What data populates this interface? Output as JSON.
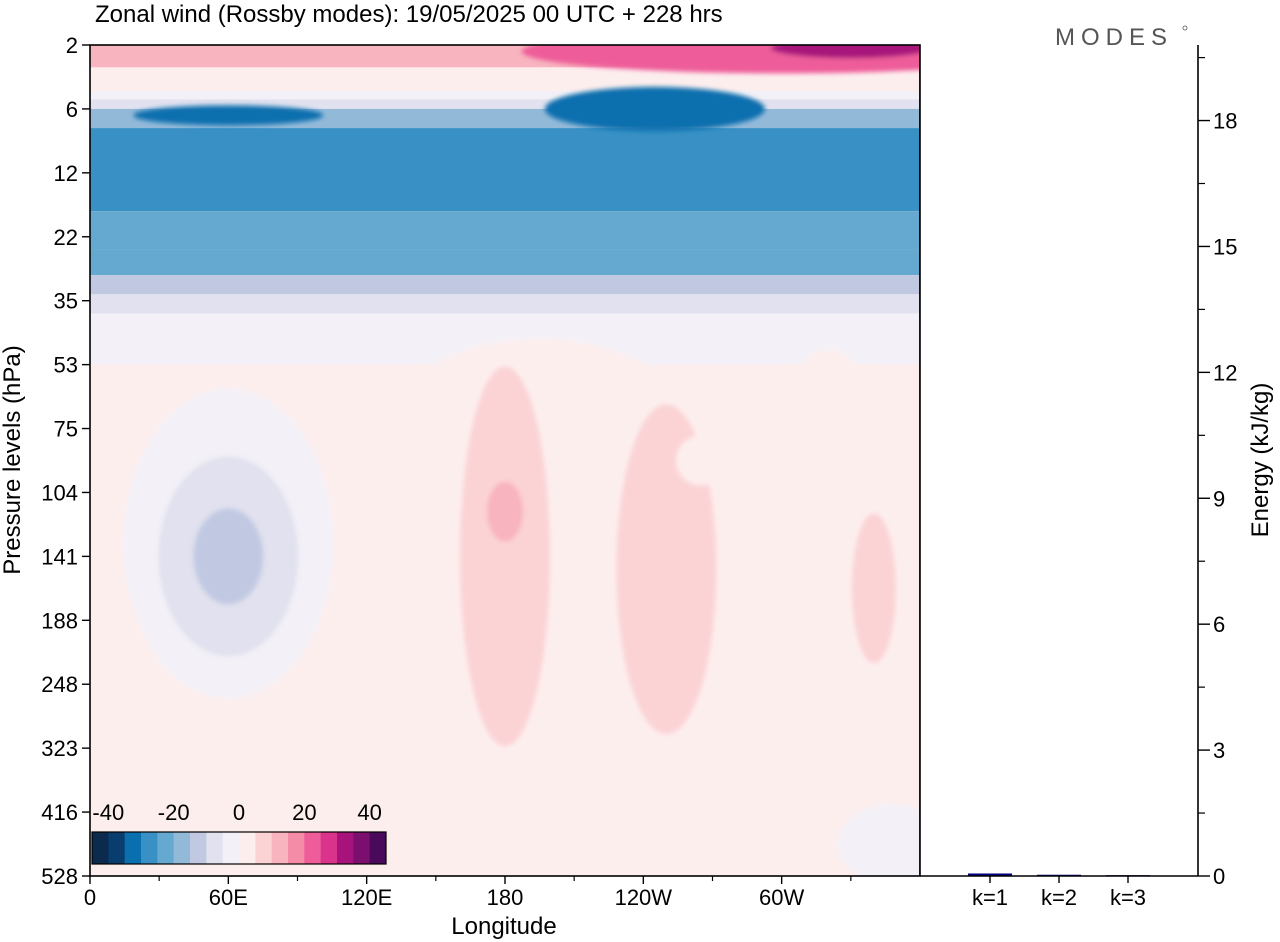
{
  "title": "Zonal wind (Rossby modes):  19/05/2025  00 UTC  + 228 hrs",
  "logo": "MODES",
  "chart_data": [
    {
      "type": "heatmap",
      "xlabel": "Longitude",
      "ylabel": "Pressure levels (hPa)",
      "x_ticks": [
        "0",
        "60E",
        "120E",
        "180",
        "120W",
        "60W"
      ],
      "x_tick_values": [
        0,
        60,
        120,
        180,
        240,
        300
      ],
      "xlim": [
        0,
        360
      ],
      "y_ticks": [
        "2",
        "6",
        "12",
        "22",
        "35",
        "53",
        "75",
        "104",
        "141",
        "188",
        "248",
        "323",
        "416",
        "528"
      ],
      "y_scale": "level-index",
      "colorbar": {
        "ticks": [
          "-40",
          "-20",
          "0",
          "20",
          "40"
        ],
        "tick_values": [
          -40,
          -20,
          0,
          20,
          40
        ],
        "range": [
          -45,
          45
        ],
        "colors": [
          "#0b2a4d",
          "#083d6e",
          "#0a6fae",
          "#3890c4",
          "#66a9d0",
          "#93b9d9",
          "#c1c9e2",
          "#e1e1ef",
          "#f3f1f7",
          "#fdeeee",
          "#fbd3d5",
          "#f8b4bf",
          "#f48ca8",
          "#ee5d9a",
          "#d9338b",
          "#a8127b",
          "#7a0f6f",
          "#4a0a5c"
        ]
      },
      "features": [
        {
          "kind": "easterly-band",
          "levels": "6-22",
          "min": -30
        },
        {
          "kind": "westerly-band",
          "levels": "2-4",
          "max": 25
        },
        {
          "kind": "easterly-core",
          "lon": 60,
          "level": "104-188",
          "min": -14
        },
        {
          "kind": "westerly-core",
          "lon": 180,
          "level": "104-141",
          "max": 14
        },
        {
          "kind": "westerly-core",
          "lon": 255,
          "level": "104-188",
          "max": 9
        },
        {
          "kind": "westerly-core",
          "lon": 340,
          "level": "141-188",
          "max": 9
        }
      ]
    },
    {
      "type": "bar",
      "ylabel": "Energy (kJ/kg)",
      "categories": [
        "k=1",
        "k=2",
        "k=3"
      ],
      "values": [
        0.06,
        0.03,
        0.02
      ],
      "ylim": [
        0,
        19.8
      ],
      "y_ticks": [
        "0",
        "3",
        "6",
        "9",
        "12",
        "15",
        "18"
      ],
      "y_tick_values": [
        0,
        3,
        6,
        9,
        12,
        15,
        18
      ],
      "bar_color": "#000080"
    }
  ]
}
